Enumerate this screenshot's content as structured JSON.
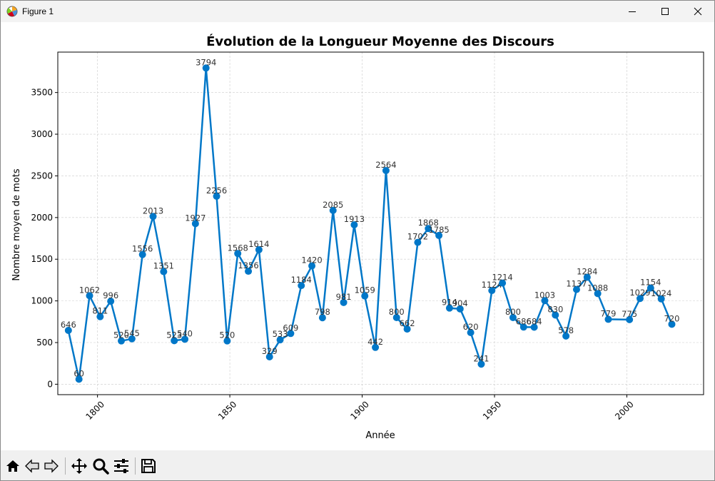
{
  "window": {
    "title": "Figure 1"
  },
  "chart_data": {
    "type": "line",
    "title": "Évolution de la Longueur Moyenne des Discours",
    "xlabel": "Année",
    "ylabel": "Nombre moyen de mots",
    "xlim": [
      1785,
      2029
    ],
    "ylim": [
      -125,
      3985
    ],
    "xticks": [
      1800,
      1850,
      1900,
      1950,
      2000
    ],
    "yticks": [
      0,
      500,
      1000,
      1500,
      2000,
      2500,
      3000,
      3500
    ],
    "grid": true,
    "color": "#0077c8",
    "x": [
      1789,
      1793,
      1797,
      1801,
      1805,
      1809,
      1813,
      1817,
      1821,
      1825,
      1829,
      1833,
      1837,
      1841,
      1845,
      1849,
      1853,
      1857,
      1861,
      1865,
      1869,
      1873,
      1877,
      1881,
      1885,
      1889,
      1893,
      1897,
      1901,
      1905,
      1909,
      1913,
      1917,
      1921,
      1925,
      1929,
      1933,
      1937,
      1941,
      1945,
      1949,
      1953,
      1957,
      1961,
      1965,
      1969,
      1973,
      1977,
      1981,
      1985,
      1989,
      1993,
      2001,
      2005,
      2009,
      2013,
      2017
    ],
    "y": [
      646,
      60,
      1062,
      811,
      996,
      520,
      545,
      1556,
      2013,
      1351,
      523,
      540,
      1927,
      3794,
      2256,
      520,
      1568,
      1356,
      1614,
      329,
      533,
      609,
      1184,
      1420,
      798,
      2085,
      981,
      1913,
      1059,
      442,
      2564,
      800,
      662,
      1702,
      1868,
      1785,
      914,
      904,
      620,
      241,
      1124,
      1214,
      800,
      686,
      684,
      1003,
      830,
      578,
      1137,
      1284,
      1088,
      779,
      775,
      1029,
      1154,
      1024,
      720
    ]
  }
}
